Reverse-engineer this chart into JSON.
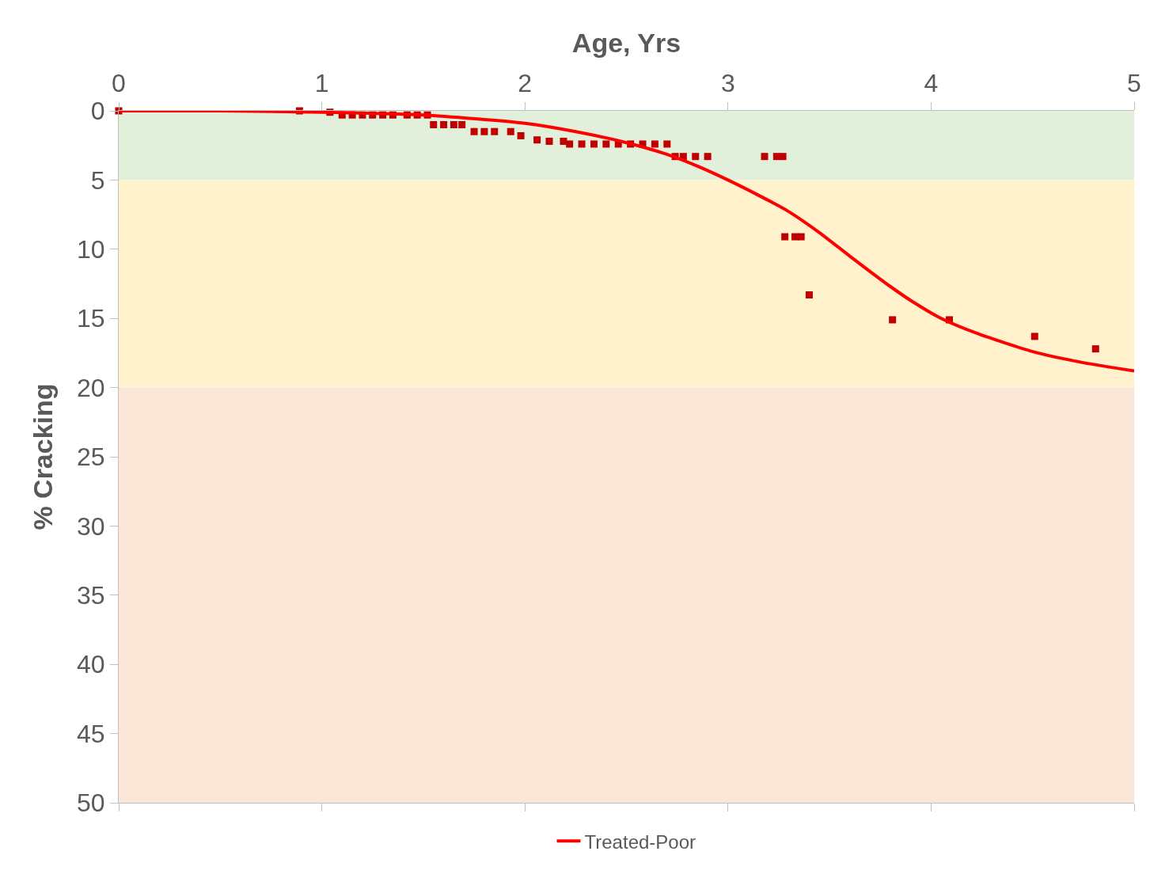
{
  "chart_data": {
    "type": "scatter",
    "xlabel": "Age, Yrs",
    "ylabel": "% Cracking",
    "xlim": [
      0,
      5
    ],
    "xticks": [
      0,
      1,
      2,
      3,
      4,
      5
    ],
    "ylim": [
      50,
      0
    ],
    "yticks": [
      0,
      5,
      10,
      15,
      20,
      25,
      30,
      35,
      40,
      45,
      50
    ],
    "grid": false,
    "legend": "bottom",
    "bands": [
      {
        "axis": "y",
        "from": 0,
        "to": 5,
        "color": "#e2efda"
      },
      {
        "axis": "y",
        "from": 5,
        "to": 20,
        "color": "#fff2cc"
      },
      {
        "axis": "y",
        "from": 20,
        "to": 50,
        "color": "#fbe5d6"
      }
    ],
    "series": [
      {
        "color": "#c00000",
        "marker": "square",
        "x": [
          0,
          0.89,
          1.04,
          1.1,
          1.15,
          1.2,
          1.25,
          1.3,
          1.35,
          1.42,
          1.47,
          1.52,
          1.55,
          1.6,
          1.65,
          1.69,
          1.75,
          1.8,
          1.85,
          1.93,
          1.98,
          2.06,
          2.12,
          2.19,
          2.22,
          2.28,
          2.34,
          2.4,
          2.46,
          2.52,
          2.58,
          2.64,
          2.7,
          2.74,
          2.78,
          2.84,
          2.9,
          3.18,
          3.24,
          3.27,
          3.28,
          3.33,
          3.36,
          3.4,
          3.81,
          4.09,
          4.51,
          4.81
        ],
        "values": [
          0,
          0,
          0.1,
          0.3,
          0.3,
          0.3,
          0.3,
          0.3,
          0.3,
          0.3,
          0.3,
          0.3,
          1,
          1,
          1,
          1,
          1.5,
          1.5,
          1.5,
          1.5,
          1.8,
          2.1,
          2.2,
          2.2,
          2.4,
          2.4,
          2.4,
          2.4,
          2.4,
          2.4,
          2.4,
          2.4,
          2.4,
          3.3,
          3.3,
          3.3,
          3.3,
          3.3,
          3.3,
          3.3,
          9.1,
          9.1,
          9.1,
          13.3,
          15.1,
          15.1,
          16.3,
          17.2
        ]
      },
      {
        "type": "line",
        "name": "Treated-Poor",
        "color": "#ff0000",
        "marker": "none",
        "line_style": "solid",
        "x": [
          0,
          0.5,
          1,
          1.5,
          2,
          2.25,
          2.5,
          2.69,
          2.85,
          3,
          3.15,
          3.29,
          3.45,
          3.6,
          3.8,
          3.91,
          4.05,
          4.23,
          4.5,
          4.75,
          5
        ],
        "values": [
          0,
          0,
          0.1,
          0.3,
          0.9,
          1.5,
          2.3,
          3.1,
          4,
          5,
          6.1,
          7.2,
          8.8,
          10.5,
          12.7,
          13.8,
          15,
          16.1,
          17.4,
          18.2,
          18.8
        ]
      }
    ]
  }
}
